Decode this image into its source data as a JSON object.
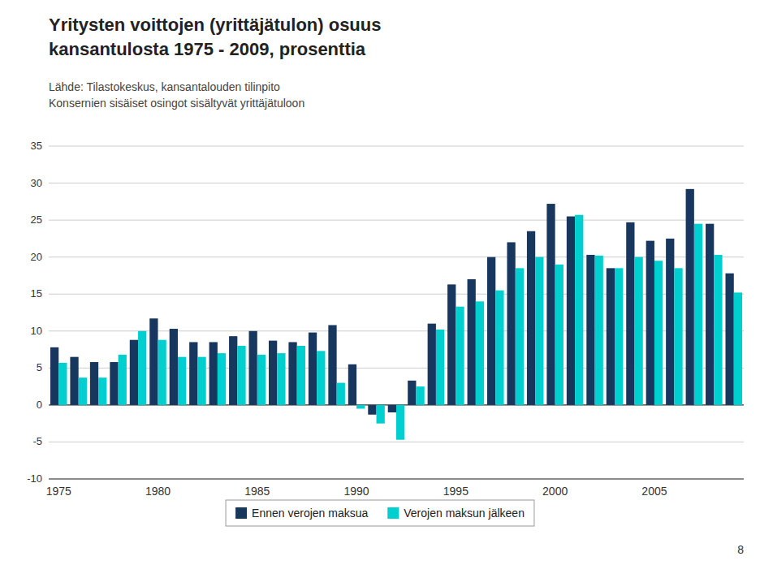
{
  "chart_data": {
    "type": "bar",
    "title": [
      "Yritysten voittojen (yrittäjätulon) osuus",
      "kansantulosta 1975 - 2009, prosenttia"
    ],
    "subtitle": [
      "Lähde: Tilastokeskus, kansantalouden tilinpito",
      "Konsernien sisäiset osingot sisältyvät yrittäjätuloon"
    ],
    "annotations": [
      "8"
    ],
    "categories": [
      "1975",
      null,
      null,
      null,
      null,
      "1980",
      null,
      null,
      null,
      null,
      "1985",
      null,
      null,
      null,
      null,
      "1990",
      null,
      null,
      null,
      null,
      "1995",
      null,
      null,
      null,
      null,
      "2000",
      null,
      null,
      null,
      null,
      "2005",
      null,
      null,
      null,
      null
    ],
    "series": [
      {
        "name": "Ennen verojen maksua",
        "color": "#17375E",
        "values": [
          7.8,
          6.5,
          5.8,
          5.8,
          8.8,
          11.7,
          10.3,
          8.5,
          8.5,
          9.3,
          10.0,
          8.7,
          8.5,
          9.8,
          10.8,
          5.5,
          -1.3,
          -1.0,
          3.3,
          11.0,
          16.3,
          17.0,
          20.0,
          22.0,
          23.5,
          27.2,
          25.5,
          20.3,
          18.5,
          24.7,
          22.2,
          22.5,
          29.2,
          24.5,
          17.8
        ]
      },
      {
        "name": "Verojen maksun jälkeen",
        "color": "#00CFCF",
        "values": [
          5.7,
          3.7,
          3.7,
          6.8,
          10.0,
          8.8,
          6.5,
          6.5,
          7.0,
          8.0,
          6.8,
          7.0,
          8.0,
          7.3,
          3.0,
          -0.5,
          -2.5,
          -4.7,
          2.5,
          10.2,
          13.3,
          14.0,
          15.5,
          18.5,
          20.0,
          19.0,
          25.7,
          20.2,
          18.5,
          20.0,
          19.5,
          18.5,
          24.5,
          20.3,
          15.2
        ]
      }
    ],
    "ylim": [
      -10,
      35
    ],
    "yticks": [
      -10,
      -5,
      0,
      5,
      10,
      15,
      20,
      25,
      30,
      35
    ],
    "grid": true,
    "legend": "bottom"
  }
}
